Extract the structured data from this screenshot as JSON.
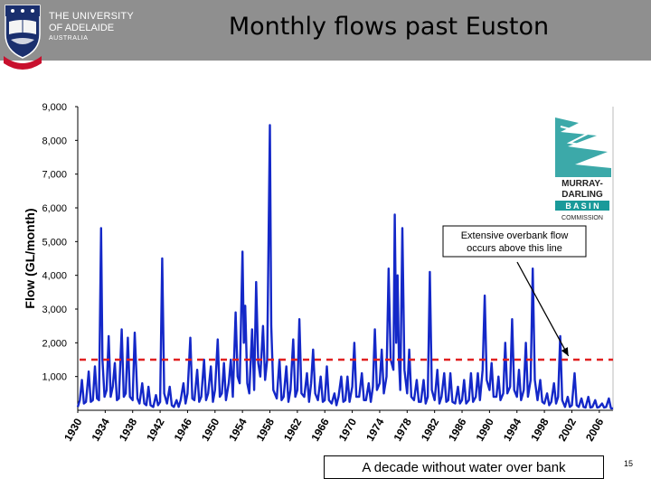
{
  "header": {
    "university_line1": "THE UNIVERSITY",
    "university_line2": "OF ADELAIDE",
    "university_line3": "AUSTRALIA",
    "title": "Monthly flows past Euston"
  },
  "colors": {
    "header_bg": "#8f8f8f",
    "series": "#1428c8",
    "threshold": "#e02020",
    "arrow": "#000000"
  },
  "chart_data": {
    "type": "line",
    "title": "Monthly flows past Euston",
    "xlabel": "",
    "ylabel": "Flow (GL/month)",
    "xlim": [
      1930,
      2008
    ],
    "ylim": [
      0,
      9000
    ],
    "grid": false,
    "y_ticks": [
      "9,000",
      "8,000",
      "7,000",
      "6,000",
      "5,000",
      "4,000",
      "3,000",
      "2,000",
      "1,000"
    ],
    "x_ticks": [
      "1930",
      "1934",
      "1938",
      "1942",
      "1946",
      "1950",
      "1954",
      "1958",
      "1962",
      "1966",
      "1970",
      "1974",
      "1978",
      "1982",
      "1986",
      "1990",
      "1994",
      "1998",
      "2002",
      "2006"
    ],
    "threshold": {
      "value": 1500,
      "style": "dashed"
    },
    "annotation": {
      "text_line1": "Extensive overbank flow",
      "text_line2": "occurs above this line",
      "points_to": [
        2001.5,
        1500
      ]
    },
    "series": [
      {
        "values": [
          [
            1930.0,
            100
          ],
          [
            1930.3,
            300
          ],
          [
            1930.6,
            900
          ],
          [
            1930.9,
            200
          ],
          [
            1931.2,
            250
          ],
          [
            1931.6,
            1150
          ],
          [
            1931.9,
            250
          ],
          [
            1932.2,
            300
          ],
          [
            1932.5,
            1300
          ],
          [
            1932.8,
            350
          ],
          [
            1933.1,
            300
          ],
          [
            1933.4,
            5400
          ],
          [
            1933.6,
            1500
          ],
          [
            1933.9,
            400
          ],
          [
            1934.2,
            600
          ],
          [
            1934.5,
            2200
          ],
          [
            1934.8,
            400
          ],
          [
            1935.1,
            700
          ],
          [
            1935.4,
            1400
          ],
          [
            1935.7,
            300
          ],
          [
            1936.0,
            350
          ],
          [
            1936.4,
            2400
          ],
          [
            1936.7,
            400
          ],
          [
            1937.0,
            500
          ],
          [
            1937.3,
            2150
          ],
          [
            1937.6,
            400
          ],
          [
            1938.0,
            300
          ],
          [
            1938.3,
            2300
          ],
          [
            1938.7,
            350
          ],
          [
            1939.0,
            200
          ],
          [
            1939.4,
            800
          ],
          [
            1939.7,
            200
          ],
          [
            1940.0,
            150
          ],
          [
            1940.3,
            700
          ],
          [
            1940.6,
            150
          ],
          [
            1941.0,
            100
          ],
          [
            1941.4,
            450
          ],
          [
            1941.7,
            150
          ],
          [
            1942.0,
            250
          ],
          [
            1942.3,
            4500
          ],
          [
            1942.6,
            500
          ],
          [
            1943.0,
            200
          ],
          [
            1943.4,
            700
          ],
          [
            1943.7,
            150
          ],
          [
            1944.0,
            100
          ],
          [
            1944.4,
            300
          ],
          [
            1944.7,
            100
          ],
          [
            1945.0,
            300
          ],
          [
            1945.4,
            800
          ],
          [
            1945.7,
            200
          ],
          [
            1946.0,
            500
          ],
          [
            1946.4,
            2150
          ],
          [
            1946.7,
            350
          ],
          [
            1947.0,
            300
          ],
          [
            1947.4,
            1200
          ],
          [
            1947.7,
            250
          ],
          [
            1948.0,
            400
          ],
          [
            1948.4,
            1500
          ],
          [
            1948.7,
            300
          ],
          [
            1949.0,
            500
          ],
          [
            1949.4,
            1300
          ],
          [
            1949.7,
            250
          ],
          [
            1950.0,
            600
          ],
          [
            1950.4,
            2100
          ],
          [
            1950.7,
            400
          ],
          [
            1951.0,
            500
          ],
          [
            1951.3,
            1400
          ],
          [
            1951.6,
            300
          ],
          [
            1952.0,
            800
          ],
          [
            1952.3,
            1500
          ],
          [
            1952.6,
            400
          ],
          [
            1953.0,
            2900
          ],
          [
            1953.3,
            1000
          ],
          [
            1953.6,
            800
          ],
          [
            1954.0,
            4700
          ],
          [
            1954.2,
            2000
          ],
          [
            1954.4,
            3100
          ],
          [
            1954.7,
            800
          ],
          [
            1955.0,
            500
          ],
          [
            1955.4,
            2400
          ],
          [
            1955.7,
            600
          ],
          [
            1956.0,
            3800
          ],
          [
            1956.3,
            1400
          ],
          [
            1956.6,
            1000
          ],
          [
            1957.0,
            2500
          ],
          [
            1957.3,
            900
          ],
          [
            1957.6,
            1500
          ],
          [
            1958.0,
            8450
          ],
          [
            1958.2,
            2500
          ],
          [
            1958.5,
            600
          ],
          [
            1959.0,
            350
          ],
          [
            1959.4,
            1500
          ],
          [
            1959.7,
            300
          ],
          [
            1960.0,
            400
          ],
          [
            1960.4,
            1300
          ],
          [
            1960.7,
            250
          ],
          [
            1961.0,
            600
          ],
          [
            1961.4,
            2100
          ],
          [
            1961.7,
            400
          ],
          [
            1962.0,
            600
          ],
          [
            1962.3,
            2700
          ],
          [
            1962.6,
            500
          ],
          [
            1963.0,
            400
          ],
          [
            1963.4,
            1100
          ],
          [
            1963.7,
            250
          ],
          [
            1964.0,
            800
          ],
          [
            1964.3,
            1800
          ],
          [
            1964.6,
            500
          ],
          [
            1965.0,
            300
          ],
          [
            1965.4,
            1000
          ],
          [
            1965.7,
            250
          ],
          [
            1966.0,
            300
          ],
          [
            1966.3,
            1300
          ],
          [
            1966.6,
            300
          ],
          [
            1967.0,
            200
          ],
          [
            1967.4,
            500
          ],
          [
            1967.7,
            150
          ],
          [
            1968.0,
            400
          ],
          [
            1968.4,
            1000
          ],
          [
            1968.7,
            250
          ],
          [
            1969.0,
            300
          ],
          [
            1969.3,
            1000
          ],
          [
            1969.6,
            250
          ],
          [
            1970.0,
            700
          ],
          [
            1970.3,
            2000
          ],
          [
            1970.6,
            400
          ],
          [
            1971.0,
            400
          ],
          [
            1971.4,
            1100
          ],
          [
            1971.7,
            300
          ],
          [
            1972.0,
            300
          ],
          [
            1972.4,
            800
          ],
          [
            1972.7,
            250
          ],
          [
            1973.0,
            700
          ],
          [
            1973.3,
            2400
          ],
          [
            1973.6,
            600
          ],
          [
            1974.0,
            800
          ],
          [
            1974.3,
            1800
          ],
          [
            1974.6,
            500
          ],
          [
            1975.0,
            1000
          ],
          [
            1975.3,
            4200
          ],
          [
            1975.6,
            1500
          ],
          [
            1976.0,
            1200
          ],
          [
            1976.2,
            5800
          ],
          [
            1976.4,
            2000
          ],
          [
            1976.6,
            4000
          ],
          [
            1976.8,
            1500
          ],
          [
            1977.0,
            600
          ],
          [
            1977.3,
            5400
          ],
          [
            1977.6,
            1200
          ],
          [
            1978.0,
            500
          ],
          [
            1978.3,
            1800
          ],
          [
            1978.6,
            400
          ],
          [
            1979.0,
            300
          ],
          [
            1979.4,
            900
          ],
          [
            1979.7,
            250
          ],
          [
            1980.0,
            250
          ],
          [
            1980.4,
            900
          ],
          [
            1980.7,
            200
          ],
          [
            1981.0,
            400
          ],
          [
            1981.3,
            4100
          ],
          [
            1981.6,
            600
          ],
          [
            1982.0,
            300
          ],
          [
            1982.4,
            1200
          ],
          [
            1982.7,
            200
          ],
          [
            1983.0,
            400
          ],
          [
            1983.4,
            1100
          ],
          [
            1983.7,
            250
          ],
          [
            1984.0,
            300
          ],
          [
            1984.3,
            1100
          ],
          [
            1984.6,
            250
          ],
          [
            1985.0,
            200
          ],
          [
            1985.4,
            700
          ],
          [
            1985.7,
            200
          ],
          [
            1986.0,
            300
          ],
          [
            1986.3,
            900
          ],
          [
            1986.6,
            200
          ],
          [
            1987.0,
            300
          ],
          [
            1987.3,
            1100
          ],
          [
            1987.6,
            250
          ],
          [
            1988.0,
            400
          ],
          [
            1988.3,
            1100
          ],
          [
            1988.6,
            300
          ],
          [
            1989.0,
            1200
          ],
          [
            1989.3,
            3400
          ],
          [
            1989.6,
            900
          ],
          [
            1990.0,
            600
          ],
          [
            1990.3,
            1400
          ],
          [
            1990.6,
            400
          ],
          [
            1991.0,
            400
          ],
          [
            1991.3,
            1000
          ],
          [
            1991.6,
            300
          ],
          [
            1992.0,
            500
          ],
          [
            1992.3,
            2000
          ],
          [
            1992.6,
            500
          ],
          [
            1993.0,
            700
          ],
          [
            1993.3,
            2700
          ],
          [
            1993.6,
            600
          ],
          [
            1994.0,
            400
          ],
          [
            1994.3,
            1200
          ],
          [
            1994.6,
            300
          ],
          [
            1995.0,
            600
          ],
          [
            1995.3,
            2000
          ],
          [
            1995.6,
            400
          ],
          [
            1996.0,
            900
          ],
          [
            1996.3,
            4200
          ],
          [
            1996.6,
            900
          ],
          [
            1997.0,
            300
          ],
          [
            1997.4,
            900
          ],
          [
            1997.7,
            250
          ],
          [
            1998.0,
            200
          ],
          [
            1998.4,
            500
          ],
          [
            1998.7,
            150
          ],
          [
            1999.0,
            250
          ],
          [
            1999.4,
            800
          ],
          [
            1999.7,
            200
          ],
          [
            2000.0,
            400
          ],
          [
            2000.3,
            2200
          ],
          [
            2000.6,
            300
          ],
          [
            2001.0,
            100
          ],
          [
            2001.4,
            400
          ],
          [
            2001.7,
            100
          ],
          [
            2002.0,
            150
          ],
          [
            2002.4,
            1100
          ],
          [
            2002.7,
            150
          ],
          [
            2003.0,
            100
          ],
          [
            2003.4,
            350
          ],
          [
            2003.7,
            100
          ],
          [
            2004.0,
            80
          ],
          [
            2004.4,
            400
          ],
          [
            2004.7,
            80
          ],
          [
            2005.0,
            100
          ],
          [
            2005.4,
            300
          ],
          [
            2005.7,
            80
          ],
          [
            2006.0,
            100
          ],
          [
            2006.4,
            200
          ],
          [
            2006.7,
            80
          ],
          [
            2007.0,
            100
          ],
          [
            2007.4,
            350
          ],
          [
            2007.7,
            60
          ],
          [
            2008.0,
            50
          ]
        ]
      }
    ]
  },
  "mdbc_logo": {
    "line1": "MURRAY-",
    "line2": "DARLING",
    "line3": "B A S I N",
    "line4": "COMMISSION"
  },
  "caption": "A decade without water over  bank",
  "page_number": "15"
}
